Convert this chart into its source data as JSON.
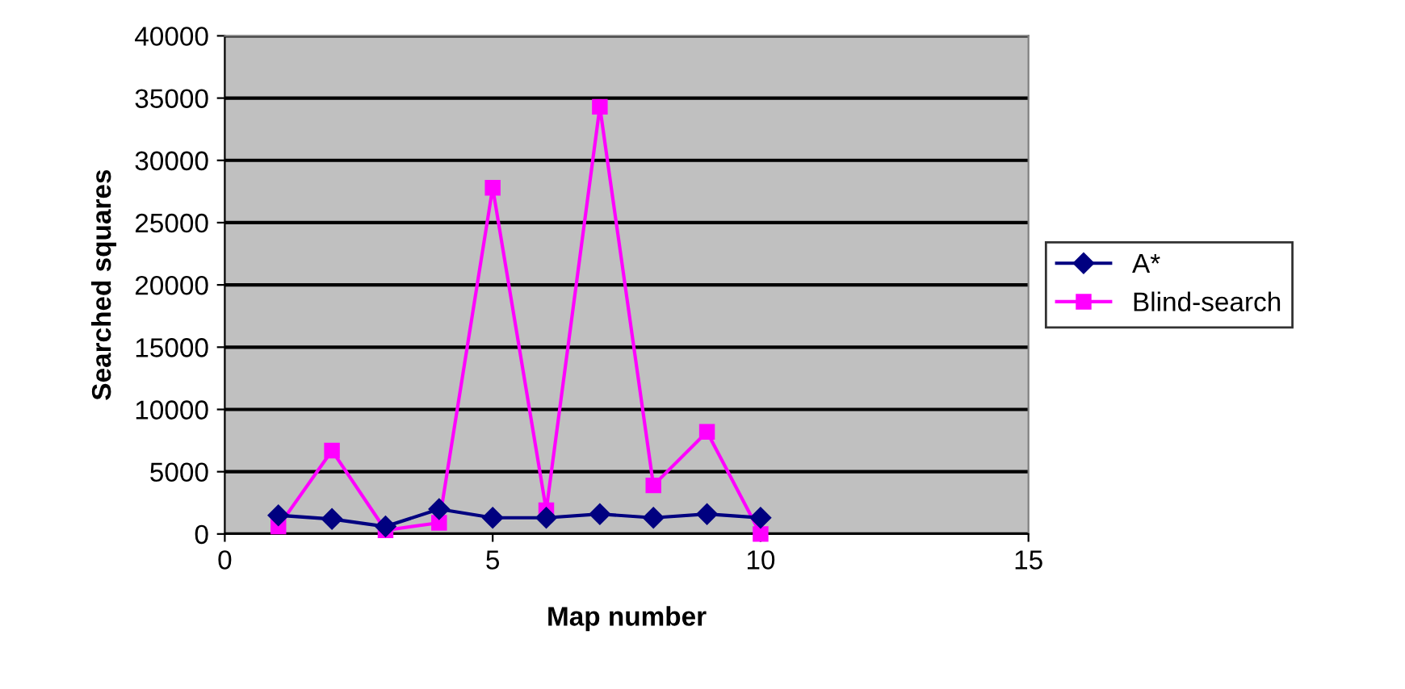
{
  "chart_data": {
    "type": "line",
    "xlabel": "Map number",
    "ylabel": "Searched squares",
    "x": [
      1,
      2,
      3,
      4,
      5,
      6,
      7,
      8,
      9,
      10
    ],
    "series": [
      {
        "name": "A*",
        "color": "#000080",
        "marker": "diamond",
        "values": [
          1500,
          1200,
          600,
          2000,
          1300,
          1300,
          1600,
          1300,
          1600,
          1300
        ]
      },
      {
        "name": "Blind-search",
        "color": "#ff00ff",
        "marker": "square",
        "values": [
          600,
          6700,
          300,
          900,
          27800,
          1900,
          34300,
          3900,
          8200,
          0
        ]
      }
    ],
    "xlim": [
      0,
      15
    ],
    "xticks": [
      0,
      5,
      10,
      15
    ],
    "ylim": [
      0,
      40000
    ],
    "yticks": [
      0,
      5000,
      10000,
      15000,
      20000,
      25000,
      30000,
      35000,
      40000
    ],
    "grid": "y",
    "legend": "right"
  }
}
